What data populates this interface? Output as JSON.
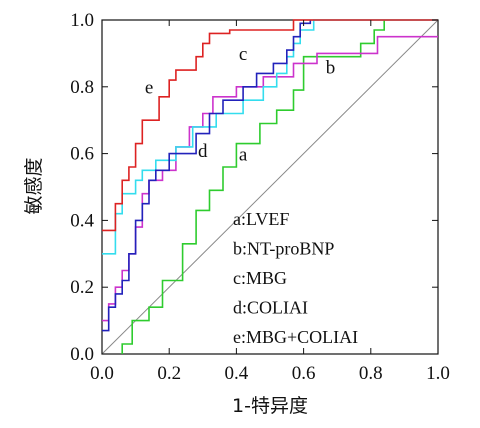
{
  "chart_data": {
    "type": "line",
    "xlabel": "1-特异度",
    "ylabel": "敏感度",
    "xlim": [
      0,
      1
    ],
    "ylim": [
      0,
      1
    ],
    "x_ticks": [
      "0.0",
      "0.2",
      "0.4",
      "0.6",
      "0.8",
      "1.0"
    ],
    "y_ticks": [
      "0.0",
      "0.2",
      "0.4",
      "0.6",
      "0.8",
      "1.0"
    ],
    "grid": false,
    "reference_line": true,
    "legend": [
      "a:LVEF",
      "b:NT-proBNP",
      "c:MBG",
      "d:COLIAI",
      "e:MBG+COLIAI"
    ],
    "series": [
      {
        "name": "a",
        "color": "#2ecc2e",
        "points": [
          [
            0.06,
            0
          ],
          [
            0.06,
            0.03
          ],
          [
            0.09,
            0.03
          ],
          [
            0.09,
            0.1
          ],
          [
            0.14,
            0.1
          ],
          [
            0.14,
            0.14
          ],
          [
            0.18,
            0.14
          ],
          [
            0.18,
            0.22
          ],
          [
            0.24,
            0.22
          ],
          [
            0.24,
            0.33
          ],
          [
            0.28,
            0.33
          ],
          [
            0.28,
            0.43
          ],
          [
            0.32,
            0.43
          ],
          [
            0.32,
            0.49
          ],
          [
            0.36,
            0.49
          ],
          [
            0.36,
            0.56
          ],
          [
            0.4,
            0.56
          ],
          [
            0.4,
            0.63
          ],
          [
            0.47,
            0.63
          ],
          [
            0.47,
            0.69
          ],
          [
            0.52,
            0.69
          ],
          [
            0.52,
            0.73
          ],
          [
            0.57,
            0.73
          ],
          [
            0.57,
            0.79
          ],
          [
            0.6,
            0.79
          ],
          [
            0.6,
            0.89
          ],
          [
            0.77,
            0.89
          ],
          [
            0.77,
            0.93
          ],
          [
            0.81,
            0.93
          ],
          [
            0.81,
            0.97
          ],
          [
            0.84,
            0.97
          ],
          [
            0.84,
            1.0
          ]
        ]
      },
      {
        "name": "b",
        "color": "#cc33cc",
        "points": [
          [
            0,
            0.1
          ],
          [
            0.02,
            0.1
          ],
          [
            0.02,
            0.15
          ],
          [
            0.04,
            0.15
          ],
          [
            0.04,
            0.2
          ],
          [
            0.06,
            0.2
          ],
          [
            0.06,
            0.25
          ],
          [
            0.08,
            0.25
          ],
          [
            0.08,
            0.3
          ],
          [
            0.1,
            0.3
          ],
          [
            0.1,
            0.38
          ],
          [
            0.12,
            0.38
          ],
          [
            0.12,
            0.48
          ],
          [
            0.14,
            0.48
          ],
          [
            0.14,
            0.52
          ],
          [
            0.18,
            0.52
          ],
          [
            0.18,
            0.55
          ],
          [
            0.22,
            0.55
          ],
          [
            0.22,
            0.62
          ],
          [
            0.26,
            0.62
          ],
          [
            0.26,
            0.68
          ],
          [
            0.3,
            0.68
          ],
          [
            0.3,
            0.72
          ],
          [
            0.33,
            0.72
          ],
          [
            0.33,
            0.77
          ],
          [
            0.4,
            0.77
          ],
          [
            0.4,
            0.8
          ],
          [
            0.48,
            0.8
          ],
          [
            0.48,
            0.83
          ],
          [
            0.57,
            0.83
          ],
          [
            0.57,
            0.87
          ],
          [
            0.64,
            0.87
          ],
          [
            0.64,
            0.9
          ],
          [
            0.82,
            0.9
          ],
          [
            0.82,
            0.95
          ],
          [
            1.0,
            0.95
          ]
        ]
      },
      {
        "name": "c",
        "color": "#33ddee",
        "points": [
          [
            0,
            0.3
          ],
          [
            0.04,
            0.3
          ],
          [
            0.04,
            0.42
          ],
          [
            0.06,
            0.42
          ],
          [
            0.06,
            0.48
          ],
          [
            0.1,
            0.48
          ],
          [
            0.1,
            0.52
          ],
          [
            0.12,
            0.52
          ],
          [
            0.12,
            0.55
          ],
          [
            0.16,
            0.55
          ],
          [
            0.16,
            0.58
          ],
          [
            0.22,
            0.58
          ],
          [
            0.22,
            0.62
          ],
          [
            0.27,
            0.62
          ],
          [
            0.27,
            0.68
          ],
          [
            0.34,
            0.68
          ],
          [
            0.34,
            0.72
          ],
          [
            0.42,
            0.72
          ],
          [
            0.42,
            0.76
          ],
          [
            0.48,
            0.76
          ],
          [
            0.48,
            0.8
          ],
          [
            0.52,
            0.8
          ],
          [
            0.52,
            0.84
          ],
          [
            0.55,
            0.84
          ],
          [
            0.55,
            0.89
          ],
          [
            0.57,
            0.89
          ],
          [
            0.57,
            0.93
          ],
          [
            0.59,
            0.93
          ],
          [
            0.59,
            0.97
          ],
          [
            0.63,
            0.97
          ],
          [
            0.63,
            1.0
          ],
          [
            1.0,
            1.0
          ]
        ]
      },
      {
        "name": "d",
        "color": "#2222bb",
        "points": [
          [
            0,
            0.07
          ],
          [
            0.02,
            0.07
          ],
          [
            0.02,
            0.14
          ],
          [
            0.04,
            0.14
          ],
          [
            0.04,
            0.18
          ],
          [
            0.06,
            0.18
          ],
          [
            0.06,
            0.22
          ],
          [
            0.08,
            0.22
          ],
          [
            0.08,
            0.3
          ],
          [
            0.1,
            0.3
          ],
          [
            0.1,
            0.4
          ],
          [
            0.12,
            0.4
          ],
          [
            0.12,
            0.45
          ],
          [
            0.14,
            0.45
          ],
          [
            0.14,
            0.52
          ],
          [
            0.16,
            0.52
          ],
          [
            0.16,
            0.55
          ],
          [
            0.2,
            0.55
          ],
          [
            0.2,
            0.6
          ],
          [
            0.28,
            0.6
          ],
          [
            0.28,
            0.66
          ],
          [
            0.32,
            0.66
          ],
          [
            0.32,
            0.72
          ],
          [
            0.36,
            0.72
          ],
          [
            0.36,
            0.76
          ],
          [
            0.42,
            0.76
          ],
          [
            0.42,
            0.8
          ],
          [
            0.46,
            0.8
          ],
          [
            0.46,
            0.84
          ],
          [
            0.51,
            0.84
          ],
          [
            0.51,
            0.87
          ],
          [
            0.55,
            0.87
          ],
          [
            0.55,
            0.91
          ],
          [
            0.57,
            0.91
          ],
          [
            0.57,
            0.95
          ],
          [
            0.59,
            0.95
          ],
          [
            0.59,
            0.99
          ],
          [
            0.62,
            0.99
          ],
          [
            0.62,
            1.0
          ]
        ]
      },
      {
        "name": "e",
        "color": "#dd2222",
        "points": [
          [
            0,
            0.37
          ],
          [
            0.04,
            0.37
          ],
          [
            0.04,
            0.45
          ],
          [
            0.06,
            0.45
          ],
          [
            0.06,
            0.52
          ],
          [
            0.08,
            0.52
          ],
          [
            0.08,
            0.56
          ],
          [
            0.1,
            0.56
          ],
          [
            0.1,
            0.63
          ],
          [
            0.12,
            0.63
          ],
          [
            0.12,
            0.7
          ],
          [
            0.17,
            0.7
          ],
          [
            0.17,
            0.77
          ],
          [
            0.2,
            0.77
          ],
          [
            0.2,
            0.82
          ],
          [
            0.22,
            0.82
          ],
          [
            0.22,
            0.85
          ],
          [
            0.28,
            0.85
          ],
          [
            0.28,
            0.89
          ],
          [
            0.3,
            0.89
          ],
          [
            0.3,
            0.93
          ],
          [
            0.32,
            0.93
          ],
          [
            0.32,
            0.96
          ],
          [
            0.38,
            0.96
          ],
          [
            0.38,
            0.97
          ],
          [
            0.57,
            0.97
          ],
          [
            0.57,
            1.0
          ],
          [
            0.72,
            1.0
          ],
          [
            0.72,
            1.0
          ],
          [
            1.0,
            1.0
          ]
        ]
      }
    ],
    "curve_labels": [
      {
        "text": "a",
        "x": 0.42,
        "y": 0.58
      },
      {
        "text": "b",
        "x": 0.68,
        "y": 0.84
      },
      {
        "text": "c",
        "x": 0.42,
        "y": 0.88
      },
      {
        "text": "d",
        "x": 0.3,
        "y": 0.59
      },
      {
        "text": "e",
        "x": 0.14,
        "y": 0.78
      }
    ]
  }
}
